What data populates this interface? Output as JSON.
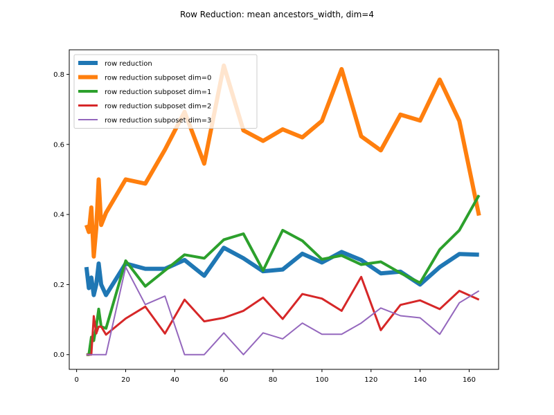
{
  "chart_data": {
    "type": "line",
    "title": "Row Reduction: mean ancestors_width, dim=4",
    "xlabel": "",
    "ylabel": "",
    "xlim": [
      -3.0,
      172.0
    ],
    "ylim": [
      -0.042,
      0.87
    ],
    "x_ticks": [
      0,
      20,
      40,
      60,
      80,
      100,
      120,
      140,
      160
    ],
    "y_ticks": [
      0.0,
      0.2,
      0.4,
      0.6,
      0.8
    ],
    "y_tick_labels": [
      "0.0",
      "0.2",
      "0.4",
      "0.6",
      "0.8"
    ],
    "legend_position": "upper-left",
    "grid": false,
    "series": [
      {
        "name": "row reduction",
        "color": "#1f77b4",
        "width": 6,
        "x": [
          4,
          5,
          6,
          7,
          8,
          9,
          10,
          12,
          20,
          28,
          36,
          44,
          52,
          60,
          68,
          76,
          84,
          92,
          100,
          108,
          116,
          124,
          132,
          140,
          148,
          156,
          164
        ],
        "y": [
          0.25,
          0.19,
          0.22,
          0.17,
          0.2,
          0.26,
          0.2,
          0.17,
          0.26,
          0.245,
          0.245,
          0.27,
          0.225,
          0.305,
          0.275,
          0.238,
          0.243,
          0.288,
          0.263,
          0.293,
          0.27,
          0.232,
          0.237,
          0.2,
          0.25,
          0.287,
          0.285
        ]
      },
      {
        "name": "row reduction subposet dim=0",
        "color": "#ff7f0e",
        "width": 6,
        "x": [
          4,
          5,
          6,
          7,
          8,
          9,
          10,
          12,
          20,
          28,
          36,
          44,
          52,
          60,
          68,
          76,
          84,
          92,
          100,
          108,
          116,
          124,
          132,
          140,
          148,
          156,
          164
        ],
        "y": [
          0.37,
          0.35,
          0.42,
          0.28,
          0.36,
          0.5,
          0.37,
          0.405,
          0.5,
          0.488,
          0.585,
          0.693,
          0.545,
          0.825,
          0.64,
          0.61,
          0.643,
          0.62,
          0.667,
          0.815,
          0.623,
          0.583,
          0.685,
          0.668,
          0.785,
          0.667,
          0.397
        ]
      },
      {
        "name": "row reduction subposet dim=1",
        "color": "#2ca02c",
        "width": 4,
        "x": [
          4,
          5,
          6,
          7,
          8,
          9,
          10,
          12,
          20,
          28,
          36,
          44,
          52,
          60,
          68,
          76,
          84,
          92,
          100,
          108,
          116,
          124,
          132,
          140,
          148,
          156,
          164
        ],
        "y": [
          0.0,
          0.0,
          0.05,
          0.04,
          0.08,
          0.13,
          0.08,
          0.075,
          0.268,
          0.195,
          0.24,
          0.285,
          0.275,
          0.328,
          0.345,
          0.24,
          0.355,
          0.325,
          0.272,
          0.283,
          0.257,
          0.265,
          0.233,
          0.205,
          0.3,
          0.355,
          0.455
        ]
      },
      {
        "name": "row reduction subposet dim=2",
        "color": "#d62728",
        "width": 3,
        "x": [
          4,
          5,
          6,
          7,
          8,
          9,
          10,
          12,
          20,
          28,
          36,
          44,
          52,
          60,
          68,
          76,
          84,
          92,
          100,
          108,
          116,
          124,
          132,
          140,
          148,
          156,
          164
        ],
        "y": [
          0.0,
          0.0,
          0.0,
          0.11,
          0.06,
          0.08,
          0.08,
          0.057,
          0.103,
          0.137,
          0.06,
          0.157,
          0.095,
          0.105,
          0.125,
          0.163,
          0.102,
          0.173,
          0.16,
          0.125,
          0.222,
          0.07,
          0.142,
          0.155,
          0.13,
          0.182,
          0.157
        ]
      },
      {
        "name": "row reduction subposet dim=3",
        "color": "#9467bd",
        "width": 2,
        "x": [
          4,
          5,
          6,
          7,
          8,
          9,
          10,
          12,
          20,
          28,
          36,
          44,
          52,
          60,
          68,
          76,
          84,
          92,
          100,
          108,
          116,
          124,
          132,
          140,
          148,
          156,
          164
        ],
        "y": [
          0.0,
          0.0,
          0.0,
          0.0,
          0.0,
          0.0,
          0.0,
          0.0,
          0.25,
          0.143,
          0.167,
          0.0,
          0.0,
          0.062,
          0.0,
          0.062,
          0.045,
          0.09,
          0.058,
          0.058,
          0.09,
          0.133,
          0.111,
          0.105,
          0.058,
          0.148,
          0.182
        ]
      }
    ]
  }
}
